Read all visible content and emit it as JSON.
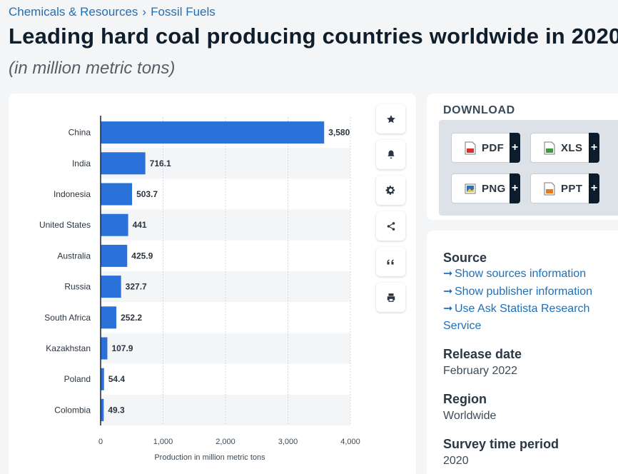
{
  "breadcrumb": {
    "items": [
      "Chemicals & Resources",
      "Fossil Fuels"
    ],
    "separator": "›"
  },
  "title": "Leading hard coal producing countries worldwide in 2020",
  "subtitle": "(in million metric tons)",
  "toolbar": {
    "icons": [
      "star-icon",
      "bell-icon",
      "gear-icon",
      "share-icon",
      "quote-icon",
      "print-icon"
    ]
  },
  "download": {
    "heading": "DOWNLOAD",
    "buttons": [
      {
        "label": "PDF",
        "color": "#d9302b"
      },
      {
        "label": "XLS",
        "color": "#3b9a3b"
      },
      {
        "label": "PNG",
        "color": "#2f6db5"
      },
      {
        "label": "PPT",
        "color": "#e57a1e"
      }
    ],
    "plus": "+"
  },
  "info": {
    "source_heading": "Source",
    "links": [
      "Show sources information",
      "Show publisher information",
      "Use Ask Statista Research Service"
    ],
    "release_heading": "Release date",
    "release_value": "February 2022",
    "region_heading": "Region",
    "region_value": "Worldwide",
    "survey_heading": "Survey time period",
    "survey_value": "2020"
  },
  "colors": {
    "bar": "#2a72d9",
    "link": "#1f6fb8",
    "row_stripe": "#f4f5f7"
  },
  "chart_data": {
    "type": "bar",
    "orientation": "horizontal",
    "categories": [
      "China",
      "India",
      "Indonesia",
      "United States",
      "Australia",
      "Russia",
      "South Africa",
      "Kazakhstan",
      "Poland",
      "Colombia"
    ],
    "values": [
      3580,
      716.1,
      503.7,
      441,
      425.9,
      327.7,
      252.2,
      107.9,
      54.4,
      49.3
    ],
    "value_labels": [
      "3,580",
      "716.1",
      "503.7",
      "441",
      "425.9",
      "327.7",
      "252.2",
      "107.9",
      "54.4",
      "49.3"
    ],
    "xlabel": "Production in million metric tons",
    "xlim": [
      0,
      4000
    ],
    "xticks": [
      0,
      1000,
      2000,
      3000,
      4000
    ],
    "xtick_labels": [
      "0",
      "1,000",
      "2,000",
      "3,000",
      "4,000"
    ],
    "grid": true
  }
}
